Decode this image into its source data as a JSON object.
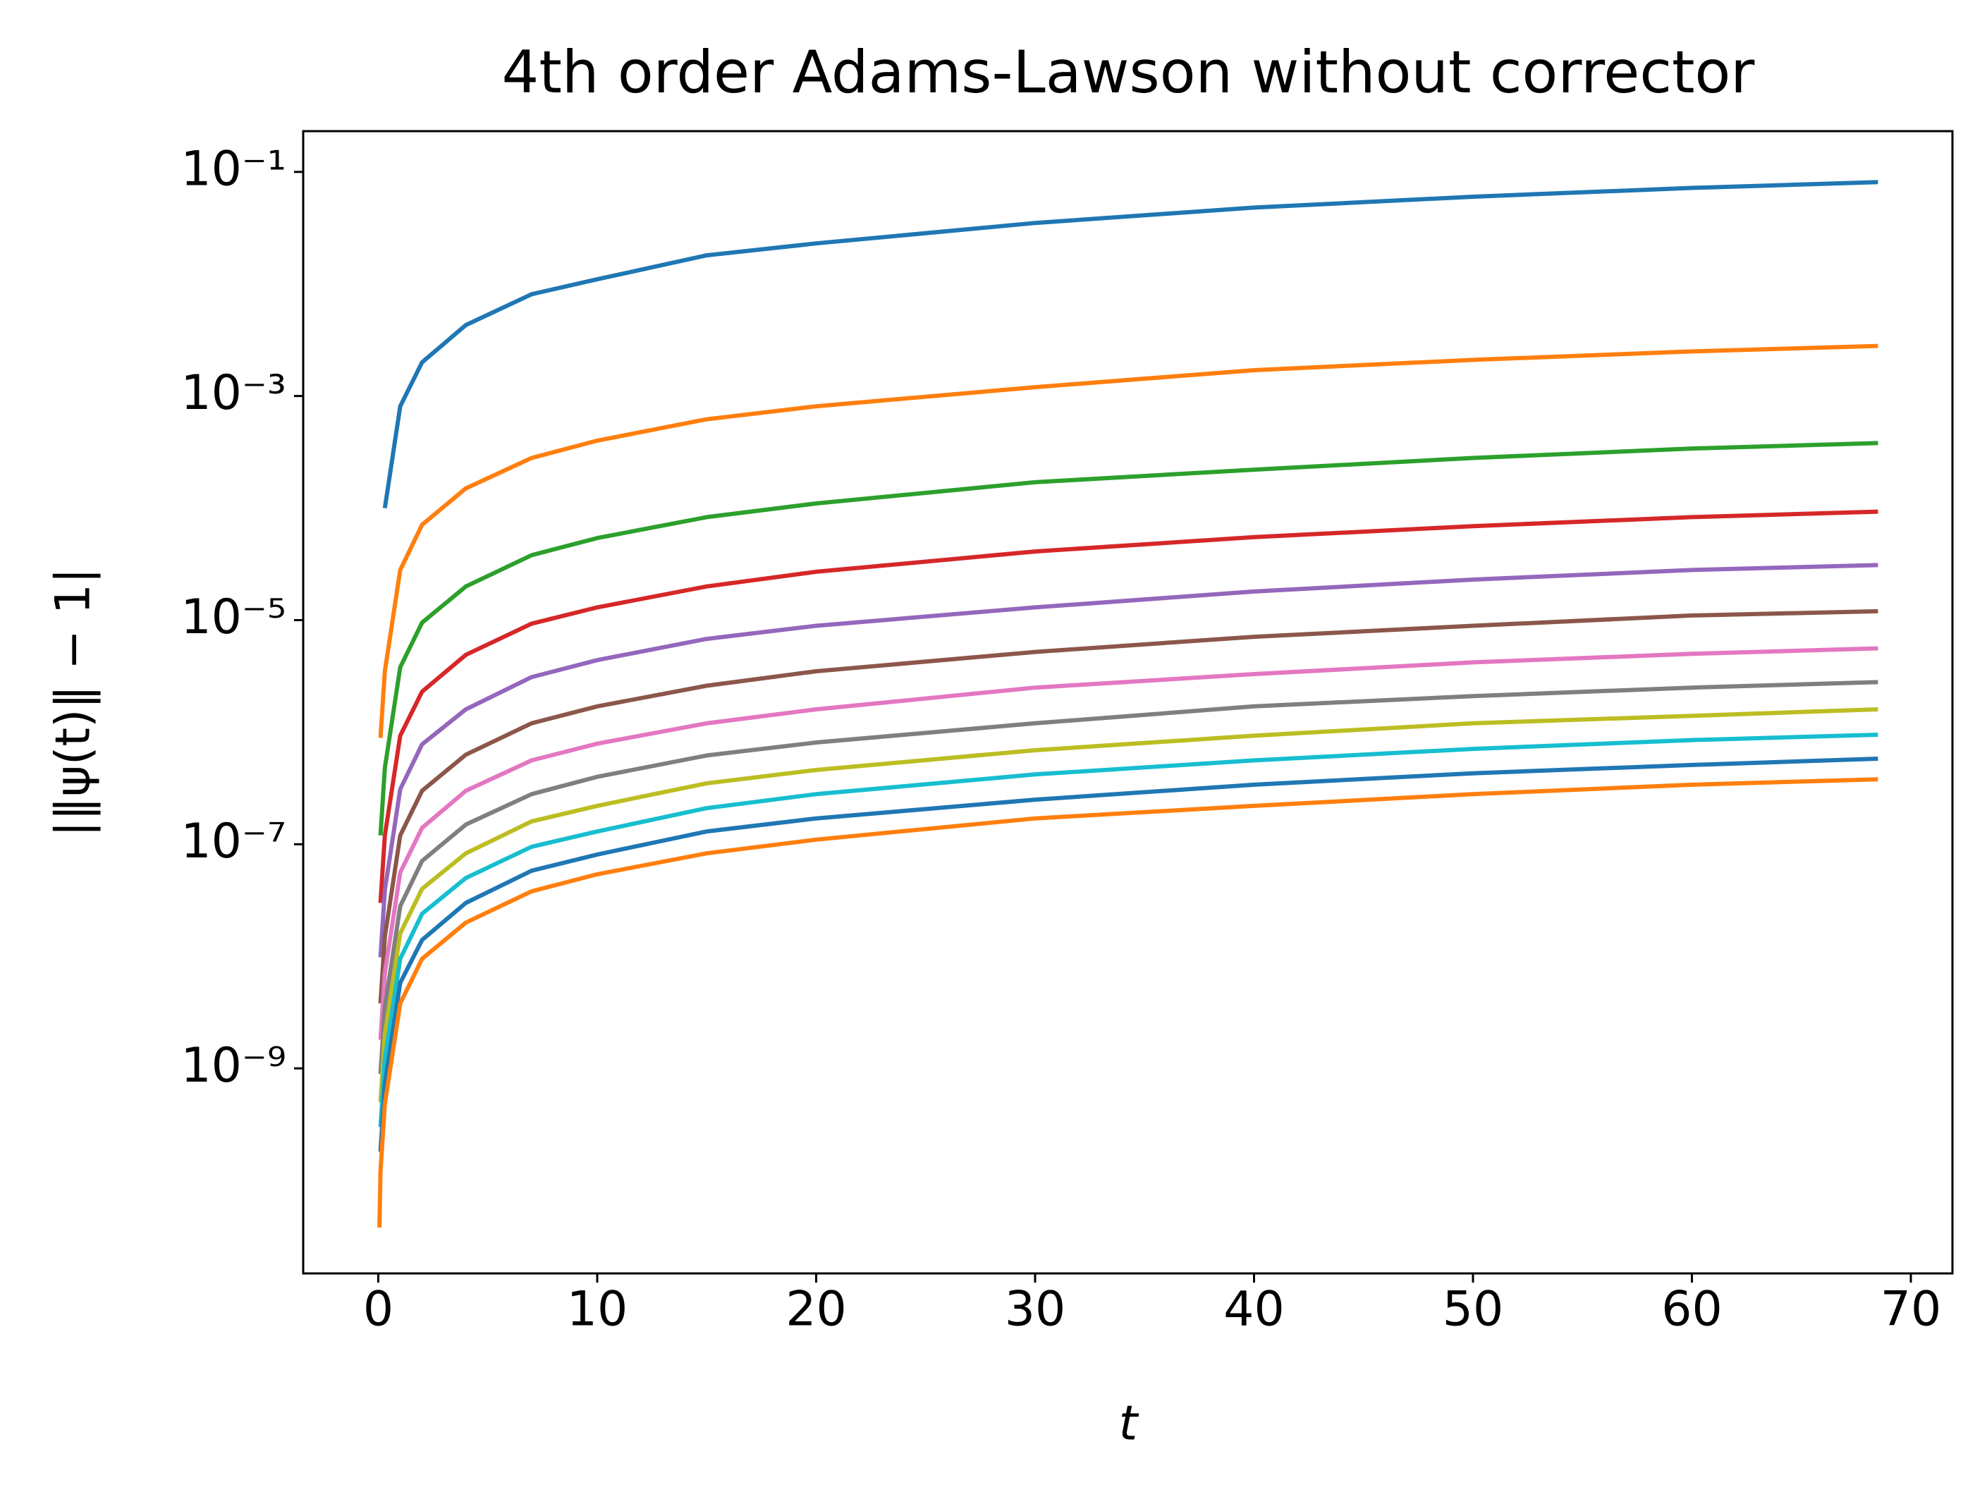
{
  "chart_data": {
    "type": "line",
    "title": "4th order Adams-Lawson without corrector",
    "x_label": "t",
    "y_label": "|‖ψ(t)‖ − 1|",
    "y_log": true,
    "xlim": [
      -3.43,
      71.9
    ],
    "ylim": [
      0.231,
      1.48e-11
    ],
    "xticks": [
      0,
      10,
      20,
      30,
      40,
      50,
      60,
      70
    ],
    "yticks": [
      {
        "value": 0.1,
        "label": "10⁻¹"
      },
      {
        "value": 0.001,
        "label": "10⁻³"
      },
      {
        "value": 1e-05,
        "label": "10⁻⁵"
      },
      {
        "value": 1e-07,
        "label": "10⁻⁷"
      },
      {
        "value": 1e-09,
        "label": "10⁻⁹"
      }
    ],
    "x": [
      0.05,
      0.1,
      0.3,
      1,
      2,
      4,
      7,
      10,
      15,
      20,
      30,
      40,
      50,
      60,
      68.5
    ],
    "series": [
      {
        "color": "#1f77b4",
        "values": [
          null,
          null,
          0.0001,
          0.00081,
          0.002,
          0.0043,
          0.0081,
          0.011,
          0.018,
          0.023,
          0.035,
          0.048,
          0.06,
          0.072,
          0.081
        ]
      },
      {
        "color": "#ff7f0e",
        "values": [
          null,
          8.9e-07,
          3.5e-06,
          2.8e-05,
          7.1e-05,
          0.00015,
          0.00028,
          0.0004,
          0.00062,
          0.00081,
          0.0012,
          0.0017,
          0.0021,
          0.0025,
          0.0028
        ]
      },
      {
        "color": "#2ca02c",
        "values": [
          null,
          1.2e-07,
          4.8e-07,
          3.8e-06,
          9.5e-06,
          2e-05,
          3.8e-05,
          5.4e-05,
          8.3e-05,
          0.00011,
          0.00017,
          0.00022,
          0.00028,
          0.00034,
          0.00038
        ]
      },
      {
        "color": "#d62728",
        "values": [
          null,
          3e-08,
          1.2e-07,
          9.3e-07,
          2.3e-06,
          4.9e-06,
          9.3e-06,
          1.3e-05,
          2e-05,
          2.7e-05,
          4.1e-05,
          5.5e-05,
          6.9e-05,
          8.3e-05,
          9.3e-05
        ]
      },
      {
        "color": "#9467bd",
        "values": [
          null,
          9.8e-09,
          3.9e-08,
          3.1e-07,
          7.8e-07,
          1.6e-06,
          3.1e-06,
          4.4e-06,
          6.8e-06,
          8.9e-06,
          1.3e-05,
          1.8e-05,
          2.3e-05,
          2.8e-05,
          3.1e-05
        ]
      },
      {
        "color": "#8c564b",
        "values": [
          null,
          3.8e-09,
          1.5e-08,
          1.2e-07,
          3e-07,
          6.3e-07,
          1.2e-06,
          1.7e-06,
          2.6e-06,
          3.5e-06,
          5.2e-06,
          7.1e-06,
          8.9e-06,
          1.1e-05,
          1.2e-05
        ]
      },
      {
        "color": "#e377c2",
        "values": [
          null,
          1.8e-09,
          7.1e-09,
          5.6e-08,
          1.4e-07,
          3e-07,
          5.6e-07,
          7.9e-07,
          1.2e-06,
          1.6e-06,
          2.5e-06,
          3.3e-06,
          4.2e-06,
          5e-06,
          5.6e-06
        ]
      },
      {
        "color": "#7f7f7f",
        "values": [
          null,
          8.9e-10,
          3.5e-09,
          2.8e-08,
          7.1e-08,
          1.5e-07,
          2.8e-07,
          4e-07,
          6.2e-07,
          8.1e-07,
          1.2e-06,
          1.7e-06,
          2.1e-06,
          2.5e-06,
          2.8e-06
        ]
      },
      {
        "color": "#bcbd22",
        "values": [
          null,
          5e-10,
          2e-09,
          1.6e-08,
          4e-08,
          8.3e-08,
          1.6e-07,
          2.2e-07,
          3.5e-07,
          4.6e-07,
          6.9e-07,
          9.3e-07,
          1.2e-06,
          1.4e-06,
          1.6e-06
        ]
      },
      {
        "color": "#17becf",
        "values": [
          null,
          3e-10,
          1.2e-09,
          9.5e-09,
          2.4e-08,
          5e-08,
          9.5e-08,
          1.3e-07,
          2.1e-07,
          2.8e-07,
          4.2e-07,
          5.6e-07,
          7.1e-07,
          8.5e-07,
          9.5e-07
        ]
      },
      {
        "color": "#1f77b4",
        "values": [
          null,
          1.8e-10,
          7.2e-10,
          5.8e-09,
          1.4e-08,
          3e-08,
          5.8e-08,
          8.1e-08,
          1.3e-07,
          1.7e-07,
          2.5e-07,
          3.4e-07,
          4.3e-07,
          5.1e-07,
          5.8e-07
        ]
      },
      {
        "color": "#ff7f0e",
        "values": [
          3.8e-11,
          1.2e-10,
          4.8e-10,
          3.8e-09,
          9.5e-09,
          2e-08,
          3.8e-08,
          5.4e-08,
          8.3e-08,
          1.1e-07,
          1.7e-07,
          2.2e-07,
          2.8e-07,
          3.4e-07,
          3.8e-07
        ]
      }
    ]
  }
}
